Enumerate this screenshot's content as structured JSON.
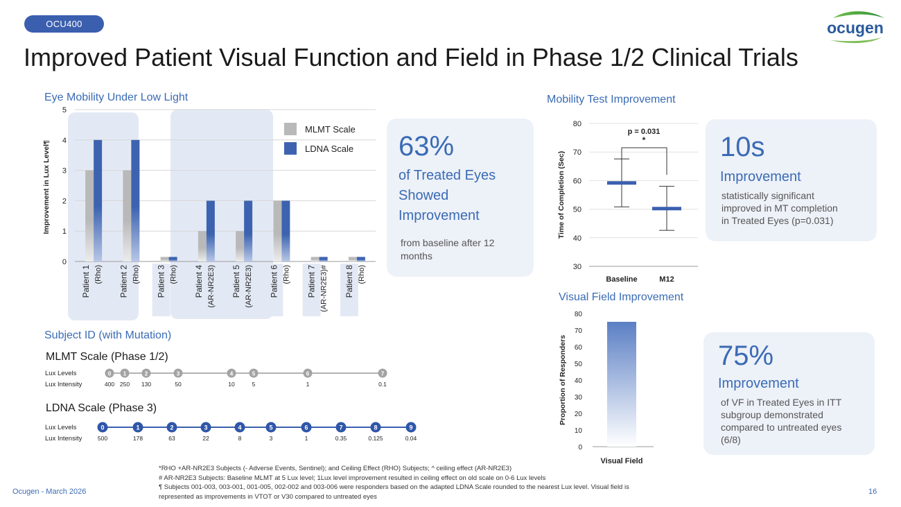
{
  "tag": "OCU400",
  "title": "Improved Patient Visual Function and Field in Phase 1/2 Clinical Trials",
  "logo_text": "ocugen",
  "footer_left": "Ocugen - March 2026",
  "page_number": "16",
  "colors": {
    "primary": "#3b5fae",
    "accent": "#3a6bb5",
    "card": "#edf1f8",
    "mlmt": "#b9b9b9",
    "ldna": "#3d63b0",
    "patient_bg": "#e3e9f4"
  },
  "left_chart": {
    "section_title": "Eye Mobility Under Low Light",
    "x_section_title": "Subject ID (with Mutation)"
  },
  "stat1": {
    "big": "63%",
    "line1": "of Treated Eyes",
    "line2": "Showed",
    "line3": "Improvement",
    "note_line1": "from baseline after 12",
    "note_line2": "months"
  },
  "mobility": {
    "section_title": "Mobility Test Improvement"
  },
  "stat2": {
    "big": "10s",
    "label": "Improvement",
    "note_line1": "statistically significant",
    "note_line2": "improved in MT completion",
    "note_line3": "in Treated Eyes (p=0.031)"
  },
  "visual_field": {
    "section_title": "Visual Field Improvement"
  },
  "stat3": {
    "big": "75%",
    "label": "Improvement",
    "note_line1": "of VF in Treated Eyes in ITT",
    "note_line2": "subgroup demonstrated",
    "note_line3": "compared to untreated eyes",
    "note_line4": "(6/8)"
  },
  "mlmt_scale": {
    "title": "MLMT Scale (Phase 1/2)",
    "levels_label": "Lux Levels",
    "intensity_label": "Lux Intensity",
    "levels": [
      "0",
      "1",
      "2",
      "3",
      "4",
      "5",
      "6",
      "7"
    ],
    "intensities": [
      "400",
      "250",
      "130",
      "50",
      "10",
      "5",
      "1",
      "0.1"
    ]
  },
  "ldna_scale": {
    "title": "LDNA Scale (Phase 3)",
    "levels_label": "Lux Levels",
    "intensity_label": "Lux Intensity",
    "levels": [
      "0",
      "1",
      "2",
      "3",
      "4",
      "5",
      "6",
      "7",
      "8",
      "9"
    ],
    "intensities": [
      "500",
      "178",
      "63",
      "22",
      "8",
      "3",
      "1",
      "0.35",
      "0.125",
      "0.04"
    ]
  },
  "footnotes": {
    "line1": "*RHO +AR-NR2E3 Subjects (- Adverse Events, Sentinel); and Ceiling Effect (RHO) Subjects; ^ ceiling effect (AR-NR2E3)",
    "line2": "# AR-NR2E3 Subjects: Baseline MLMT at 5 Lux level; 1Lux level improvement resulted in ceiling effect on old scale on 0-6 Lux levels",
    "line3": "¶ Subjects 001-003, 003-001, 001-005, 002-002 and 003-006 were responders based on the adapted LDNA Scale rounded to the nearest Lux level.   Visual field is",
    "line4": "represented as improvements in VTOT or V30 compared to untreated eyes"
  },
  "chart_data": [
    {
      "type": "bar",
      "title": "Eye Mobility Under Low Light",
      "xlabel": "Subject ID (with Mutation)",
      "ylabel": "Improvement in Lux Level¶",
      "ylim": [
        0,
        5
      ],
      "yticks": [
        "0",
        "1",
        "2",
        "3",
        "4",
        "5"
      ],
      "categories": [
        [
          "Patient 1",
          "(Rho)"
        ],
        [
          "Patient 2",
          "(Rho)"
        ],
        [
          "Patient 3",
          "(Rho)"
        ],
        [
          "Patient 4",
          "(AR-NR2E3)"
        ],
        [
          "Patient 5",
          "(AR-NR2E3)"
        ],
        [
          "Patient 6",
          "(Rho)"
        ],
        [
          "Patient 7",
          "(AR-NR2E3)#"
        ],
        [
          "Patient 8",
          "(Rho)"
        ]
      ],
      "series": [
        {
          "name": "MLMT Scale",
          "values": [
            3,
            3,
            0.15,
            1,
            1,
            2,
            0.15,
            0.15
          ]
        },
        {
          "name": "LDNA Scale",
          "values": [
            4,
            4,
            0.15,
            2,
            2,
            2,
            0.15,
            0.15
          ]
        }
      ],
      "legend": [
        "MLMT Scale",
        "LDNA Scale"
      ]
    },
    {
      "type": "errorbar",
      "title": "Mobility Test Improvement",
      "ylabel": "Time of Completion (Sec)",
      "ylim": [
        30,
        80
      ],
      "yticks": [
        "30",
        "40",
        "50",
        "60",
        "70",
        "80"
      ],
      "categories": [
        "Baseline",
        "M12"
      ],
      "mean": [
        59.2,
        50.2
      ],
      "lower": [
        50.8,
        42.6
      ],
      "upper": [
        67.6,
        58.0
      ],
      "annotation": "p = 0.031",
      "significance": "*"
    },
    {
      "type": "bar",
      "title": "Visual Field Improvement",
      "ylabel": "Proportion of Responders",
      "ylim": [
        0,
        80
      ],
      "yticks": [
        "0",
        "10",
        "20",
        "30",
        "40",
        "50",
        "60",
        "70",
        "80"
      ],
      "categories": [
        "Visual Field"
      ],
      "values": [
        75
      ]
    }
  ]
}
